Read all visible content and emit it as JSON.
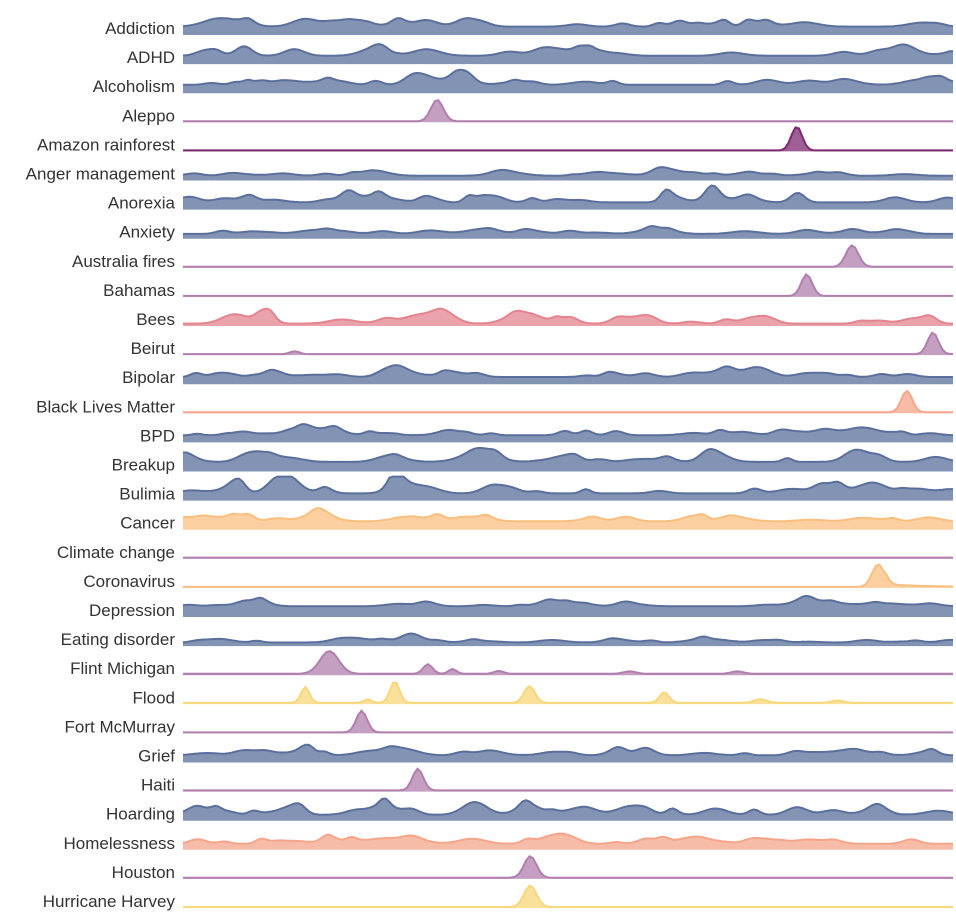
{
  "chart_data": {
    "type": "area",
    "subtype": "ridgeline",
    "x": "time (unlabeled)",
    "series": [
      {
        "name": "Addiction",
        "color": "#5a6f9b",
        "shape": {
          "kind": "noisy",
          "base": 0.35,
          "amp": 0.5,
          "seed": 11
        }
      },
      {
        "name": "ADHD",
        "color": "#5a6f9b",
        "shape": {
          "kind": "noisy",
          "base": 0.35,
          "amp": 0.5,
          "seed": 23
        }
      },
      {
        "name": "Alcoholism",
        "color": "#5a6f9b",
        "shape": {
          "kind": "noisy",
          "base": 0.35,
          "amp": 0.5,
          "seed": 37
        }
      },
      {
        "name": "Aleppo",
        "color": "#b07fae",
        "shape": {
          "kind": "spike",
          "peaks": [
            [
              0.33,
              0.9,
              0.008
            ]
          ],
          "base": 0.04
        }
      },
      {
        "name": "Amazon rainforest",
        "color": "#7c2a70",
        "shape": {
          "kind": "spike",
          "peaks": [
            [
              0.797,
              1.0,
              0.007
            ]
          ],
          "base": 0.04
        }
      },
      {
        "name": "Anger management",
        "color": "#5a6f9b",
        "shape": {
          "kind": "noisy",
          "base": 0.2,
          "amp": 0.25,
          "seed": 41
        }
      },
      {
        "name": "Anorexia",
        "color": "#5a6f9b",
        "shape": {
          "kind": "noisy",
          "base": 0.3,
          "amp": 0.65,
          "seed": 53
        }
      },
      {
        "name": "Anxiety",
        "color": "#5a6f9b",
        "shape": {
          "kind": "noisy",
          "base": 0.2,
          "amp": 0.3,
          "seed": 61
        }
      },
      {
        "name": "Australia fires",
        "color": "#b07fae",
        "shape": {
          "kind": "spike",
          "peaks": [
            [
              0.869,
              0.9,
              0.008
            ]
          ],
          "base": 0.04
        }
      },
      {
        "name": "Bahamas",
        "color": "#b07fae",
        "shape": {
          "kind": "spike",
          "peaks": [
            [
              0.81,
              0.9,
              0.007
            ]
          ],
          "base": 0.04
        }
      },
      {
        "name": "Bees",
        "color": "#e3848f",
        "shape": {
          "kind": "noisy",
          "base": 0.1,
          "amp": 0.6,
          "seed": 71
        }
      },
      {
        "name": "Beirut",
        "color": "#b07fae",
        "shape": {
          "kind": "spike",
          "peaks": [
            [
              0.974,
              0.9,
              0.007
            ],
            [
              0.145,
              0.12,
              0.006
            ]
          ],
          "base": 0.04
        }
      },
      {
        "name": "Bipolar",
        "color": "#5a6f9b",
        "shape": {
          "kind": "noisy",
          "base": 0.3,
          "amp": 0.4,
          "seed": 83
        }
      },
      {
        "name": "Black Lives Matter",
        "color": "#f4a58a",
        "shape": {
          "kind": "spike",
          "peaks": [
            [
              0.94,
              0.9,
              0.007
            ]
          ],
          "base": 0.04
        }
      },
      {
        "name": "BPD",
        "color": "#5a6f9b",
        "shape": {
          "kind": "noisy",
          "base": 0.3,
          "amp": 0.45,
          "seed": 97
        }
      },
      {
        "name": "Breakup",
        "color": "#5a6f9b",
        "shape": {
          "kind": "noisy",
          "base": 0.4,
          "amp": 0.55,
          "seed": 101
        }
      },
      {
        "name": "Bulimia",
        "color": "#5a6f9b",
        "shape": {
          "kind": "noisy",
          "base": 0.3,
          "amp": 0.65,
          "seed": 113
        }
      },
      {
        "name": "Cancer",
        "color": "#f9bf7f",
        "shape": {
          "kind": "noisy",
          "base": 0.35,
          "amp": 0.45,
          "seed": 127
        }
      },
      {
        "name": "Climate change",
        "color": "#b07fae",
        "shape": {
          "kind": "flat",
          "base": 0.05
        }
      },
      {
        "name": "Coronavirus",
        "color": "#f9bf7f",
        "shape": {
          "kind": "covid",
          "base": 0.04
        }
      },
      {
        "name": "Depression",
        "color": "#5a6f9b",
        "shape": {
          "kind": "noisy",
          "base": 0.45,
          "amp": 0.3,
          "seed": 131
        }
      },
      {
        "name": "Eating disorder",
        "color": "#5a6f9b",
        "shape": {
          "kind": "noisy",
          "base": 0.15,
          "amp": 0.25,
          "seed": 139
        }
      },
      {
        "name": "Flint Michigan",
        "color": "#b07fae",
        "shape": {
          "kind": "spike",
          "peaks": [
            [
              0.19,
              0.95,
              0.012
            ],
            [
              0.318,
              0.4,
              0.006
            ],
            [
              0.35,
              0.2,
              0.005
            ],
            [
              0.41,
              0.12,
              0.006
            ],
            [
              0.58,
              0.1,
              0.008
            ],
            [
              0.72,
              0.1,
              0.008
            ]
          ],
          "base": 0.06
        }
      },
      {
        "name": "Flood",
        "color": "#f7d77a",
        "shape": {
          "kind": "spike",
          "peaks": [
            [
              0.16,
              0.12,
              0.006
            ],
            [
              0.157,
              0.15,
              0.006
            ],
            [
              0.159,
              0.4,
              0.005
            ],
            [
              0.275,
              0.9,
              0.006
            ],
            [
              0.24,
              0.15,
              0.005
            ],
            [
              0.45,
              0.7,
              0.007
            ],
            [
              0.625,
              0.45,
              0.006
            ],
            [
              0.75,
              0.15,
              0.008
            ],
            [
              0.85,
              0.1,
              0.008
            ]
          ],
          "base": 0.06
        }
      },
      {
        "name": "Fort McMurray",
        "color": "#b07fae",
        "shape": {
          "kind": "spike",
          "peaks": [
            [
              0.232,
              0.9,
              0.007
            ]
          ],
          "base": 0.04
        }
      },
      {
        "name": "Grief",
        "color": "#5a6f9b",
        "shape": {
          "kind": "noisy",
          "base": 0.3,
          "amp": 0.45,
          "seed": 149
        }
      },
      {
        "name": "Haiti",
        "color": "#b07fae",
        "shape": {
          "kind": "spike",
          "peaks": [
            [
              0.305,
              0.9,
              0.007
            ]
          ],
          "base": 0.05
        }
      },
      {
        "name": "Hoarding",
        "color": "#5a6f9b",
        "shape": {
          "kind": "noisy",
          "base": 0.25,
          "amp": 0.7,
          "seed": 157
        }
      },
      {
        "name": "Homelessness",
        "color": "#f4a58a",
        "shape": {
          "kind": "noisy",
          "base": 0.25,
          "amp": 0.5,
          "seed": 163
        }
      },
      {
        "name": "Houston",
        "color": "#b07fae",
        "shape": {
          "kind": "spike",
          "peaks": [
            [
              0.451,
              0.9,
              0.008
            ]
          ],
          "base": 0.05
        }
      },
      {
        "name": "Hurricane Harvey",
        "color": "#f7d77a",
        "shape": {
          "kind": "spike",
          "peaks": [
            [
              0.451,
              0.9,
              0.008
            ]
          ],
          "base": 0.04
        }
      }
    ]
  }
}
